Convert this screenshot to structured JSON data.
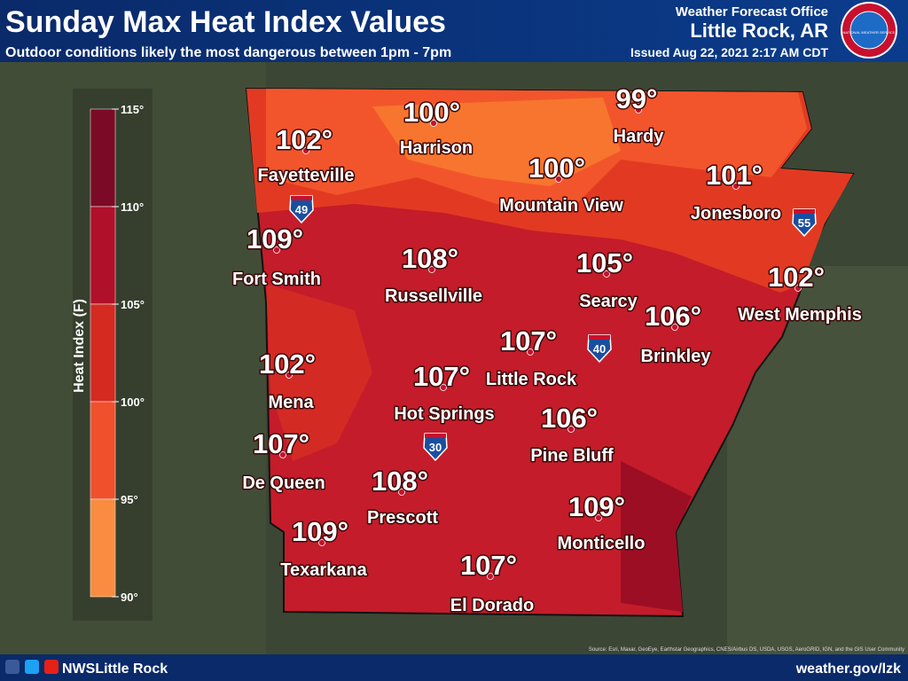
{
  "header": {
    "title": "Sunday Max Heat Index Values",
    "subtitle": "Outdoor conditions likely the most dangerous between 1pm - 7pm",
    "office": "Weather Forecast Office",
    "location": "Little Rock, AR",
    "issued": "Issued Aug 22, 2021 2:17 AM CDT",
    "logo": "NATIONAL WEATHER SERVICE"
  },
  "legend": {
    "title": "Heat Index (F)",
    "labels": [
      "115°",
      "110°",
      "105°",
      "100°",
      "95°",
      "90°"
    ]
  },
  "cities": [
    {
      "value": "102°",
      "name": "Fayetteville"
    },
    {
      "value": "100°",
      "name": "Harrison"
    },
    {
      "value": "99°",
      "name": "Hardy"
    },
    {
      "value": "100°",
      "name": "Mountain View"
    },
    {
      "value": "101°",
      "name": "Jonesboro"
    },
    {
      "value": "109°",
      "name": "Fort Smith"
    },
    {
      "value": "108°",
      "name": "Russellville"
    },
    {
      "value": "105°",
      "name": "Searcy"
    },
    {
      "value": "102°",
      "name": "West Memphis"
    },
    {
      "value": "106°",
      "name": "Brinkley"
    },
    {
      "value": "107°",
      "name": "Little Rock"
    },
    {
      "value": "107°",
      "name": "Hot Springs"
    },
    {
      "value": "102°",
      "name": "Mena"
    },
    {
      "value": "106°",
      "name": "Pine Bluff"
    },
    {
      "value": "107°",
      "name": "De Queen"
    },
    {
      "value": "108°",
      "name": "Prescott"
    },
    {
      "value": "109°",
      "name": "Monticello"
    },
    {
      "value": "109°",
      "name": "Texarkana"
    },
    {
      "value": "107°",
      "name": "El Dorado"
    }
  ],
  "interstates": [
    "49",
    "55",
    "40",
    "30"
  ],
  "credits": "Source: Esri, Maxar, GeoEye, Earthstar Geographics, CNES/Airbus DS, USDA, USGS, AeroGRID, IGN, and the GIS User Community",
  "footer": {
    "handle": "NWSLittle Rock",
    "website": "weather.gov/lzk"
  }
}
